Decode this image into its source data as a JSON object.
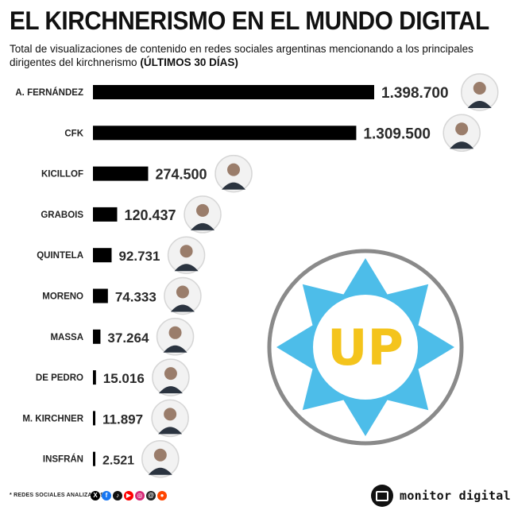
{
  "title": "EL KIRCHNERISMO EN EL MUNDO DIGITAL",
  "subtitle": "Total de visualizaciones de contenido en redes sociales argentinas mencionando a los principales dirigentes del kirchnerismo",
  "subtitle_bold": "(ÚLTIMOS 30 DÍAS)",
  "chart_data": {
    "type": "bar",
    "orientation": "horizontal",
    "title": "EL KIRCHNERISMO EN EL MUNDO DIGITAL",
    "categories": [
      "A. FERNÁNDEZ",
      "CFK",
      "KICILLOF",
      "GRABOIS",
      "QUINTELA",
      "MORENO",
      "MASSA",
      "DE PEDRO",
      "M. KIRCHNER",
      "INSFRÁN"
    ],
    "values": [
      1398700,
      1309500,
      274500,
      120437,
      92731,
      74333,
      37264,
      15016,
      11897,
      2521
    ],
    "value_labels": [
      "1.398.700",
      "1.309.500",
      "274.500",
      "120.437",
      "92.731",
      "74.333",
      "37.264",
      "15.016",
      "11.897",
      "2.521"
    ],
    "bar_color": "#000000",
    "xlim": [
      0,
      1398700
    ]
  },
  "badge": {
    "text": "UP",
    "star_color": "#4dbde9",
    "text_color": "#f4c41c",
    "ring_color": "#8a8a8a"
  },
  "footer": {
    "note": "* REDES SOCIALES ANALIZADAS",
    "social_icons": [
      "x-icon",
      "facebook-icon",
      "tiktok-icon",
      "youtube-icon",
      "instagram-icon",
      "threads-icon",
      "reddit-icon"
    ],
    "social_glyphs": [
      "X",
      "f",
      "♪",
      "▶",
      "◎",
      "@",
      "●"
    ],
    "brand": "monitor digital"
  }
}
